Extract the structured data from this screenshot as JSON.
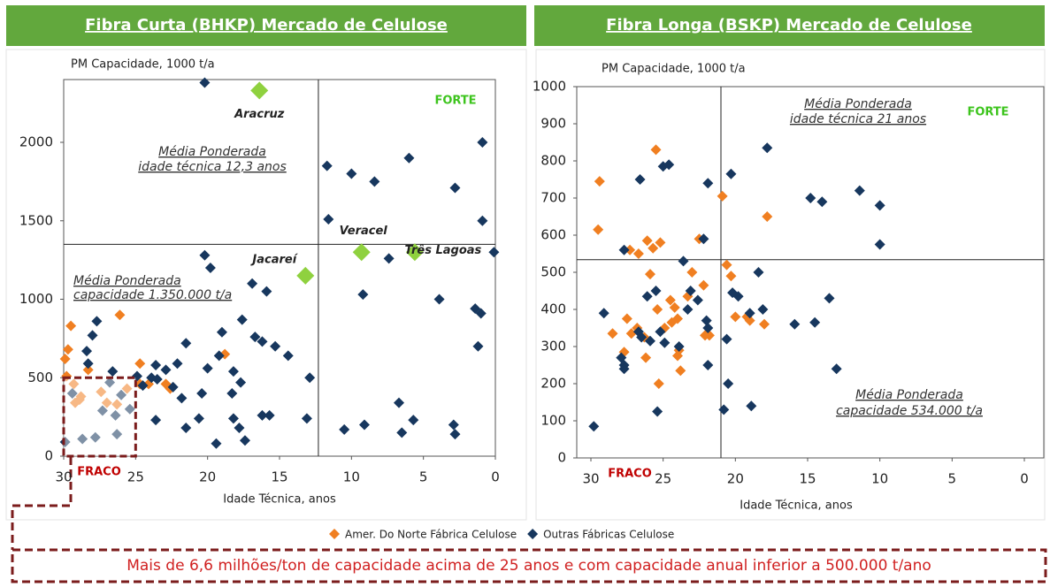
{
  "chart_data": [
    {
      "type": "scatter",
      "title": "Fibra Curta (BHKP) Mercado de Celulose",
      "y_label": "PM Capacidade, 1000 t/a",
      "x_label": "Idade Técnica, anos",
      "xlim": [
        30,
        0
      ],
      "xticks": [
        30,
        25,
        20,
        15,
        10,
        5,
        0
      ],
      "ylim": [
        0,
        2400
      ],
      "yticks": [
        0,
        500,
        1000,
        1500,
        2000
      ],
      "reference_lines": {
        "x": 12.3,
        "y": 1350
      },
      "highlight_region": {
        "xlim": [
          30,
          25
        ],
        "ylim": [
          0,
          500
        ]
      },
      "annotations": [
        "FORTE",
        "Média Ponderada",
        "idade técnica 12,3 anos",
        "Média Ponderada",
        "capacidade 1.350.000 t/a",
        "FRACO"
      ],
      "highlights": {
        "color": "#8fd13f",
        "points": [
          {
            "label": "Aracruz",
            "x": 16.4,
            "y": 2330
          },
          {
            "label": "Jacareí",
            "x": 13.2,
            "y": 1150
          },
          {
            "label": "Veracel",
            "x": 9.3,
            "y": 1300
          },
          {
            "label": "Três Lagoas",
            "x": 5.6,
            "y": 1300
          }
        ]
      },
      "series": [
        {
          "name": "Amer. Do Norte Fábrica Celulose",
          "color": "#f07f21",
          "x": [
            29.7,
            29.5,
            29.9,
            29.3,
            28.8,
            28.3,
            26.1,
            29.8,
            24.7,
            24.7,
            24.1,
            22.9,
            22.6,
            18.8,
            29.2,
            28.9,
            27.4,
            27.0,
            26.3,
            25.6
          ],
          "values": [
            680,
            830,
            620,
            460,
            380,
            550,
            900,
            510,
            590,
            460,
            460,
            460,
            430,
            650,
            340,
            360,
            410,
            340,
            330,
            430
          ]
        },
        {
          "name": "Outras Fábricas Celulose",
          "color": "#17375e",
          "x": [
            20.2,
            11.7,
            10.0,
            8.4,
            6.0,
            0.9,
            2.8,
            11.6,
            0.9,
            20.2,
            19.8,
            16.9,
            15.9,
            9.2,
            7.4,
            0.1,
            3.9,
            1.4,
            1.0,
            1.2,
            27.7,
            28.0,
            28.4,
            21.5,
            19.0,
            17.6,
            16.7,
            16.2,
            15.3,
            14.4,
            12.9,
            18.2,
            20.0,
            22.1,
            22.9,
            23.6,
            23.9,
            24.5,
            20.4,
            22.4,
            23.5,
            24.9,
            20.6,
            18.3,
            18.2,
            16.2,
            15.7,
            13.1,
            21.5,
            17.8,
            19.4,
            17.4,
            10.5,
            9.1,
            6.7,
            5.7,
            6.5,
            2.9,
            2.8,
            29.9,
            26.6,
            28.3,
            23.6,
            21.8,
            19.2,
            17.7,
            29.4,
            28.7,
            27.8,
            27.3,
            26.8,
            26.3,
            25.4,
            26.0,
            26.4
          ],
          "values": [
            2380,
            1850,
            1800,
            1750,
            1900,
            2000,
            1710,
            1510,
            1500,
            1280,
            1200,
            1100,
            1050,
            1030,
            1260,
            1300,
            1000,
            940,
            910,
            700,
            860,
            770,
            670,
            720,
            790,
            870,
            760,
            730,
            700,
            640,
            500,
            540,
            560,
            590,
            550,
            580,
            500,
            450,
            400,
            440,
            490,
            510,
            240,
            400,
            240,
            260,
            260,
            240,
            180,
            180,
            80,
            100,
            170,
            200,
            340,
            230,
            150,
            200,
            140,
            90,
            540,
            590,
            230,
            370,
            640,
            470,
            400,
            110,
            120,
            290,
            470,
            140,
            300,
            390,
            260
          ]
        }
      ]
    },
    {
      "type": "scatter",
      "y_label": "PM Capacidade, 1000 t/a",
      "x_label": "Idade Técnica, anos",
      "title": "Fibra Longa (BSKP) Mercado de Celulose",
      "xlim": [
        30,
        0
      ],
      "xticks": [
        30,
        25,
        20,
        15,
        10,
        5,
        0
      ],
      "ylim": [
        0,
        1000
      ],
      "yticks": [
        0,
        100,
        200,
        300,
        400,
        500,
        600,
        700,
        800,
        900,
        1000
      ],
      "reference_lines": {
        "x": 21,
        "y": 534
      },
      "annotations": [
        "FORTE",
        "Média Ponderada",
        "idade técnica 21 anos",
        "Média Ponderada",
        "capacidade  534.000 t/a",
        "FRACO"
      ],
      "series": [
        {
          "color": "#f07f21",
          "x": [
            29.4,
            29.5,
            25.5,
            26.7,
            26.1,
            25.7,
            25.2,
            27.3,
            25.9,
            22.5,
            20.9,
            20.6,
            20.3,
            17.8,
            28.5,
            27.5,
            27.2,
            26.8,
            26.3,
            26.2,
            27.7,
            24.9,
            24.5,
            24.2,
            24.4,
            24.0,
            25.3,
            24.0,
            23.9,
            23.8,
            23.3,
            23.0,
            22.2,
            22.1,
            21.8,
            20.0,
            19.2,
            19.0,
            18.0,
            25.4
          ],
          "values": [
            745,
            615,
            830,
            550,
            585,
            565,
            580,
            560,
            495,
            590,
            705,
            520,
            490,
            650,
            335,
            375,
            335,
            350,
            325,
            270,
            285,
            350,
            425,
            405,
            365,
            375,
            200,
            275,
            290,
            235,
            435,
            500,
            465,
            330,
            330,
            380,
            380,
            370,
            360,
            400
          ]
        },
        {
          "color": "#17375e",
          "x": [
            29.8,
            29.1,
            27.7,
            26.6,
            25.0,
            24.6,
            21.9,
            20.3,
            17.8,
            22.2,
            23.6,
            25.5,
            26.1,
            23.3,
            23.1,
            22.6,
            22.0,
            21.9,
            27.9,
            27.7,
            27.7,
            26.7,
            26.5,
            25.9,
            25.2,
            24.9,
            23.9,
            21.9,
            25.4,
            20.8,
            20.5,
            20.6,
            20.2,
            19.8,
            18.4,
            18.1,
            19.0,
            18.9,
            15.9,
            14.5,
            14.8,
            14.0,
            11.4,
            10.0,
            10.0,
            13.5,
            13.0
          ],
          "values": [
            85,
            390,
            560,
            750,
            785,
            790,
            740,
            765,
            835,
            590,
            530,
            450,
            435,
            400,
            450,
            425,
            370,
            350,
            270,
            250,
            240,
            340,
            325,
            315,
            340,
            310,
            300,
            250,
            125,
            130,
            200,
            320,
            445,
            435,
            500,
            400,
            390,
            140,
            360,
            365,
            700,
            690,
            720,
            680,
            575,
            430,
            240
          ]
        }
      ]
    }
  ],
  "footer": "Mais de 6,6 milhões/ton de capacidade acima de 25 anos e com capacidade anual inferior a 500.000 t/ano"
}
